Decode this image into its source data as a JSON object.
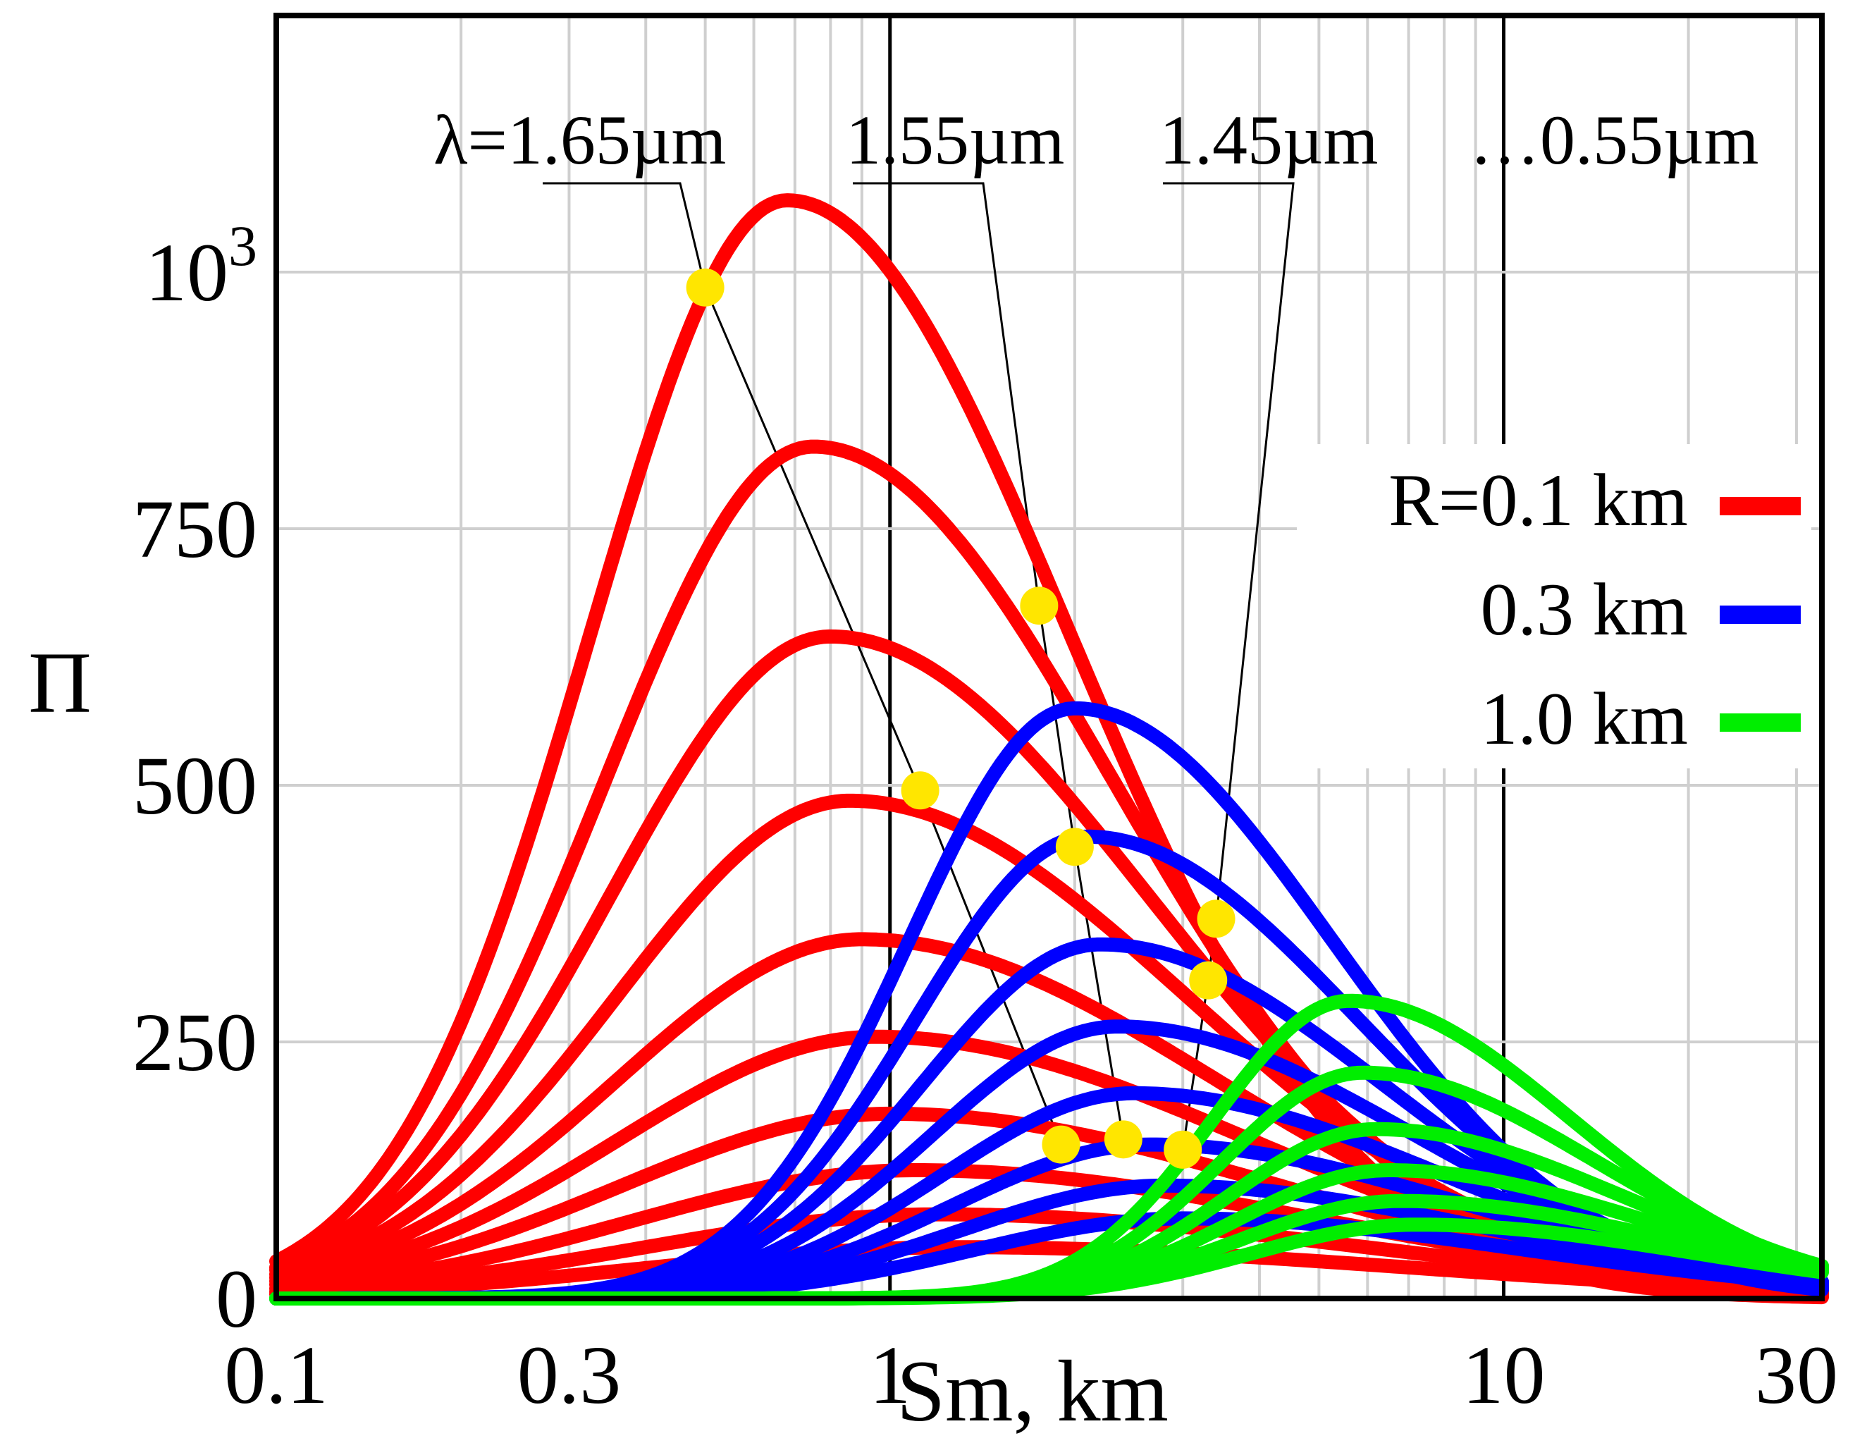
{
  "chart_data": {
    "type": "line",
    "title": "",
    "xlabel": "Sm, km",
    "ylabel": "Π",
    "x_scale": "log",
    "xlim": [
      0.1,
      33
    ],
    "ylim": [
      0,
      1250
    ],
    "grid": true,
    "x_ticks": [
      {
        "value": 0.1,
        "label": "0.1"
      },
      {
        "value": 0.3,
        "label": "0.3"
      },
      {
        "value": 1,
        "label": "1"
      },
      {
        "value": 10,
        "label": "10"
      },
      {
        "value": 30,
        "label": "30"
      }
    ],
    "y_ticks": [
      {
        "value": 0,
        "label": "0"
      },
      {
        "value": 250,
        "label": "250"
      },
      {
        "value": 500,
        "label": "500"
      },
      {
        "value": 750,
        "label": "750"
      },
      {
        "value": 1000,
        "label": "10",
        "sup": "3"
      }
    ],
    "wavelength_labels": [
      "λ=1.65µm",
      "1.55µm",
      "1.45µm",
      "…0.55µm"
    ],
    "legend": {
      "position": "right",
      "entries": [
        {
          "label": "R=0.1 km",
          "color": "#ff0000"
        },
        {
          "label": "0.3 km",
          "color": "#0000ff"
        },
        {
          "label": "1.0 km",
          "color": "#00ee00"
        }
      ]
    },
    "series": [
      {
        "name": "R=0.1 km",
        "color": "#ff0000",
        "curves": [
          {
            "peak_x": 0.68,
            "peak_y": 1070,
            "w_left": 0.32,
            "w_right": 0.46
          },
          {
            "peak_x": 0.75,
            "peak_y": 830,
            "w_left": 0.34,
            "w_right": 0.49
          },
          {
            "peak_x": 0.8,
            "peak_y": 645,
            "w_left": 0.36,
            "w_right": 0.52
          },
          {
            "peak_x": 0.86,
            "peak_y": 485,
            "w_left": 0.38,
            "w_right": 0.55
          },
          {
            "peak_x": 0.9,
            "peak_y": 350,
            "w_left": 0.4,
            "w_right": 0.58
          },
          {
            "peak_x": 0.95,
            "peak_y": 255,
            "w_left": 0.42,
            "w_right": 0.61
          },
          {
            "peak_x": 1.0,
            "peak_y": 180,
            "w_left": 0.44,
            "w_right": 0.64
          },
          {
            "peak_x": 1.1,
            "peak_y": 125,
            "w_left": 0.46,
            "w_right": 0.67
          },
          {
            "peak_x": 1.2,
            "peak_y": 82,
            "w_left": 0.48,
            "w_right": 0.7
          },
          {
            "peak_x": 1.3,
            "peak_y": 50,
            "w_left": 0.5,
            "w_right": 0.73
          }
        ]
      },
      {
        "name": "0.3 km",
        "color": "#0000ff",
        "curves": [
          {
            "peak_x": 2.0,
            "peak_y": 575,
            "w_left": 0.27,
            "w_right": 0.42
          },
          {
            "peak_x": 2.1,
            "peak_y": 450,
            "w_left": 0.28,
            "w_right": 0.44
          },
          {
            "peak_x": 2.2,
            "peak_y": 345,
            "w_left": 0.29,
            "w_right": 0.46
          },
          {
            "peak_x": 2.35,
            "peak_y": 265,
            "w_left": 0.3,
            "w_right": 0.48
          },
          {
            "peak_x": 2.5,
            "peak_y": 200,
            "w_left": 0.31,
            "w_right": 0.5
          },
          {
            "peak_x": 2.65,
            "peak_y": 150,
            "w_left": 0.32,
            "w_right": 0.52
          },
          {
            "peak_x": 2.8,
            "peak_y": 110,
            "w_left": 0.33,
            "w_right": 0.54
          },
          {
            "peak_x": 3.0,
            "peak_y": 78,
            "w_left": 0.34,
            "w_right": 0.56
          }
        ]
      },
      {
        "name": "1.0 km",
        "color": "#00ee00",
        "curves": [
          {
            "peak_x": 5.6,
            "peak_y": 290,
            "w_left": 0.22,
            "w_right": 0.36
          },
          {
            "peak_x": 5.9,
            "peak_y": 220,
            "w_left": 0.23,
            "w_right": 0.38
          },
          {
            "peak_x": 6.2,
            "peak_y": 165,
            "w_left": 0.24,
            "w_right": 0.4
          },
          {
            "peak_x": 6.5,
            "peak_y": 125,
            "w_left": 0.25,
            "w_right": 0.42
          },
          {
            "peak_x": 6.8,
            "peak_y": 95,
            "w_left": 0.26,
            "w_right": 0.44
          },
          {
            "peak_x": 7.2,
            "peak_y": 72,
            "w_left": 0.27,
            "w_right": 0.46
          }
        ]
      }
    ],
    "markers": [
      {
        "x": 0.5,
        "y": 985,
        "wavelength": "1.65µm"
      },
      {
        "x": 1.12,
        "y": 495,
        "wavelength": "1.65µm"
      },
      {
        "x": 1.9,
        "y": 150,
        "wavelength": "1.65µm"
      },
      {
        "x": 1.75,
        "y": 675,
        "wavelength": "1.55µm"
      },
      {
        "x": 2.0,
        "y": 440,
        "wavelength": "1.55µm"
      },
      {
        "x": 2.4,
        "y": 155,
        "wavelength": "1.55µm"
      },
      {
        "x": 3.4,
        "y": 370,
        "wavelength": "1.45µm"
      },
      {
        "x": 3.3,
        "y": 310,
        "wavelength": "1.45µm"
      },
      {
        "x": 3.0,
        "y": 145,
        "wavelength": "1.45µm"
      }
    ],
    "marker_color": "#ffe600"
  }
}
